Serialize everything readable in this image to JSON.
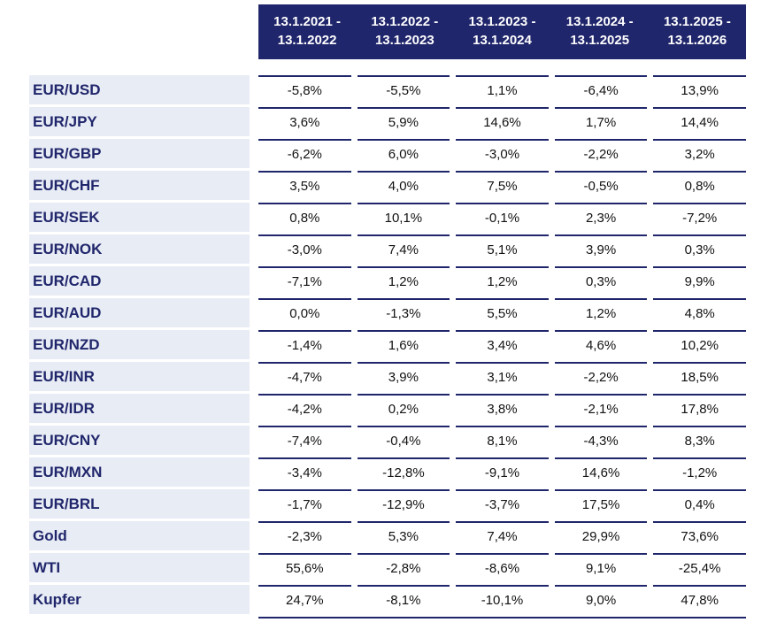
{
  "colors": {
    "header_bg": "#20266b",
    "header_text": "#ffffff",
    "label_bg": "#e8ecf5",
    "label_text": "#20266b",
    "row_rule": "#20266b",
    "value_text": "#121212"
  },
  "chart_data": {
    "type": "table",
    "columns": [
      "13.1.2021 - 13.1.2022",
      "13.1.2022 - 13.1.2023",
      "13.1.2023 - 13.1.2024",
      "13.1.2024 - 13.1.2025",
      "13.1.2025 - 13.1.2026"
    ],
    "rows": [
      {
        "label": "EUR/USD",
        "values": [
          "-5,8%",
          "-5,5%",
          "1,1%",
          "-6,4%",
          "13,9%"
        ]
      },
      {
        "label": "EUR/JPY",
        "values": [
          "3,6%",
          "5,9%",
          "14,6%",
          "1,7%",
          "14,4%"
        ]
      },
      {
        "label": "EUR/GBP",
        "values": [
          "-6,2%",
          "6,0%",
          "-3,0%",
          "-2,2%",
          "3,2%"
        ]
      },
      {
        "label": "EUR/CHF",
        "values": [
          "3,5%",
          "4,0%",
          "7,5%",
          "-0,5%",
          "0,8%"
        ]
      },
      {
        "label": "EUR/SEK",
        "values": [
          "0,8%",
          "10,1%",
          "-0,1%",
          "2,3%",
          "-7,2%"
        ]
      },
      {
        "label": "EUR/NOK",
        "values": [
          "-3,0%",
          "7,4%",
          "5,1%",
          "3,9%",
          "0,3%"
        ]
      },
      {
        "label": "EUR/CAD",
        "values": [
          "-7,1%",
          "1,2%",
          "1,2%",
          "0,3%",
          "9,9%"
        ]
      },
      {
        "label": "EUR/AUD",
        "values": [
          "0,0%",
          "-1,3%",
          "5,5%",
          "1,2%",
          "4,8%"
        ]
      },
      {
        "label": "EUR/NZD",
        "values": [
          "-1,4%",
          "1,6%",
          "3,4%",
          "4,6%",
          "10,2%"
        ]
      },
      {
        "label": "EUR/INR",
        "values": [
          "-4,7%",
          "3,9%",
          "3,1%",
          "-2,2%",
          "18,5%"
        ]
      },
      {
        "label": "EUR/IDR",
        "values": [
          "-4,2%",
          "0,2%",
          "3,8%",
          "-2,1%",
          "17,8%"
        ]
      },
      {
        "label": "EUR/CNY",
        "values": [
          "-7,4%",
          "-0,4%",
          "8,1%",
          "-4,3%",
          "8,3%"
        ]
      },
      {
        "label": "EUR/MXN",
        "values": [
          "-3,4%",
          "-12,8%",
          "-9,1%",
          "14,6%",
          "-1,2%"
        ]
      },
      {
        "label": "EUR/BRL",
        "values": [
          "-1,7%",
          "-12,9%",
          "-3,7%",
          "17,5%",
          "0,4%"
        ]
      },
      {
        "label": "Gold",
        "values": [
          "-2,3%",
          "5,3%",
          "7,4%",
          "29,9%",
          "73,6%"
        ]
      },
      {
        "label": "WTI",
        "values": [
          "55,6%",
          "-2,8%",
          "-8,6%",
          "9,1%",
          "-25,4%"
        ]
      },
      {
        "label": "Kupfer",
        "values": [
          "24,7%",
          "-8,1%",
          "-10,1%",
          "9,0%",
          "47,8%"
        ]
      }
    ]
  }
}
